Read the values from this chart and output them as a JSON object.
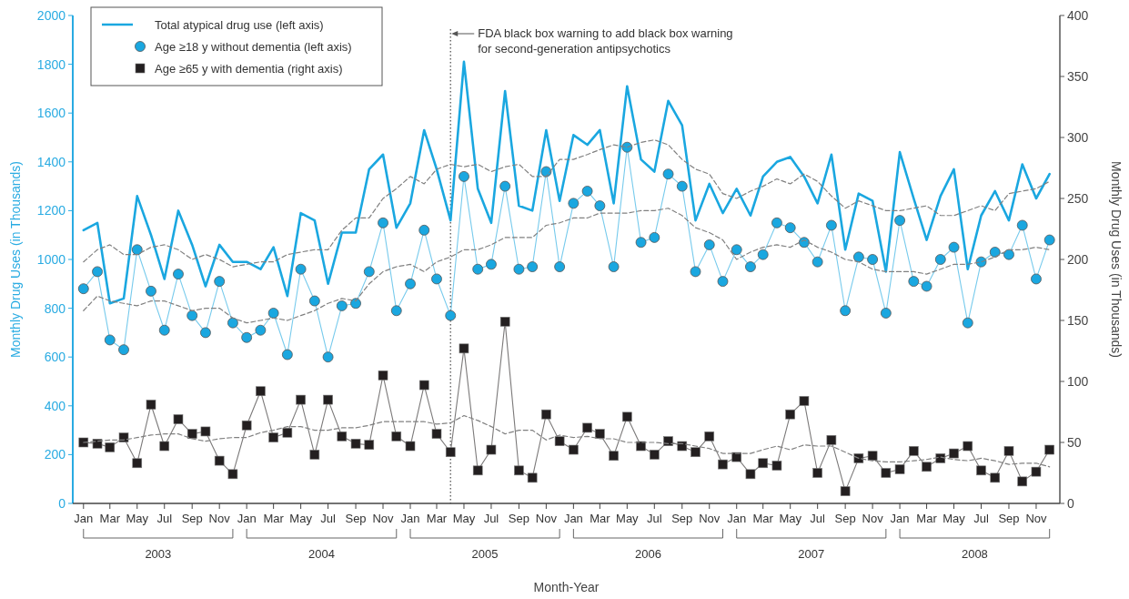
{
  "chart_data": {
    "type": "line",
    "xlabel": "Month-Year",
    "ylabel": "Monthly Drug Uses (in Thousands)",
    "y2label": "Monthly Drug Uses (in Thousands)",
    "x": [
      "2003-01",
      "2003-02",
      "2003-03",
      "2003-04",
      "2003-05",
      "2003-06",
      "2003-07",
      "2003-08",
      "2003-09",
      "2003-10",
      "2003-11",
      "2003-12",
      "2004-01",
      "2004-02",
      "2004-03",
      "2004-04",
      "2004-05",
      "2004-06",
      "2004-07",
      "2004-08",
      "2004-09",
      "2004-10",
      "2004-11",
      "2004-12",
      "2005-01",
      "2005-02",
      "2005-03",
      "2005-04",
      "2005-05",
      "2005-06",
      "2005-07",
      "2005-08",
      "2005-09",
      "2005-10",
      "2005-11",
      "2005-12",
      "2006-01",
      "2006-02",
      "2006-03",
      "2006-04",
      "2006-05",
      "2006-06",
      "2006-07",
      "2006-08",
      "2006-09",
      "2006-10",
      "2006-11",
      "2006-12",
      "2007-01",
      "2007-02",
      "2007-03",
      "2007-04",
      "2007-05",
      "2007-06",
      "2007-07",
      "2007-08",
      "2007-09",
      "2007-10",
      "2007-11",
      "2007-12",
      "2008-01",
      "2008-02",
      "2008-03",
      "2008-04",
      "2008-05",
      "2008-06",
      "2008-07",
      "2008-08",
      "2008-09",
      "2008-10",
      "2008-11",
      "2008-12"
    ],
    "series": [
      {
        "name": "Total atypical drug use (left axis)",
        "color": "#1aa7e0",
        "marker": "none",
        "line_style": "solid",
        "values": [
          1120,
          1150,
          820,
          840,
          1260,
          1100,
          920,
          1200,
          1060,
          890,
          1060,
          990,
          990,
          960,
          1050,
          850,
          1190,
          1160,
          900,
          1110,
          1110,
          1370,
          1430,
          1130,
          1230,
          1530,
          1370,
          1160,
          1810,
          1290,
          1150,
          1690,
          1220,
          1200,
          1530,
          1240,
          1510,
          1470,
          1530,
          1230,
          1710,
          1410,
          1360,
          1650,
          1550,
          1160,
          1310,
          1190,
          1290,
          1180,
          1340,
          1400,
          1420,
          1340,
          1230,
          1430,
          1040,
          1270,
          1240,
          950,
          1440,
          1250,
          1080,
          1260,
          1370,
          960,
          1180,
          1280,
          1160,
          1390,
          1250,
          1350
        ]
      },
      {
        "name": "Age ≥18 y without dementia (left axis)",
        "color": "#1aa7e0",
        "marker": "circle",
        "line_style": "solid",
        "values": [
          880,
          950,
          670,
          630,
          1040,
          870,
          710,
          940,
          770,
          700,
          910,
          740,
          680,
          710,
          780,
          610,
          960,
          830,
          600,
          810,
          820,
          950,
          1150,
          790,
          900,
          1120,
          920,
          770,
          1340,
          960,
          980,
          1300,
          960,
          970,
          1360,
          970,
          1230,
          1280,
          1220,
          970,
          1460,
          1070,
          1090,
          1350,
          1300,
          950,
          1060,
          910,
          1040,
          970,
          1020,
          1150,
          1130,
          1070,
          990,
          1140,
          790,
          1010,
          1000,
          780,
          1160,
          910,
          890,
          1000,
          1050,
          740,
          990,
          1030,
          1020,
          1140,
          920,
          1080
        ]
      },
      {
        "name": "Age ≥65 y with dementia (right axis)",
        "color": "#231f20",
        "marker": "square",
        "line_style": "solid",
        "axis": "y2",
        "values": [
          50,
          49,
          46,
          54,
          33,
          81,
          47,
          69,
          57,
          59,
          35,
          24,
          64,
          92,
          54,
          58,
          85,
          40,
          85,
          55,
          49,
          48,
          105,
          55,
          47,
          97,
          57,
          42,
          127,
          27,
          44,
          149,
          27,
          21,
          73,
          51,
          44,
          62,
          57,
          39,
          71,
          47,
          40,
          51,
          47,
          42,
          55,
          32,
          38,
          24,
          33,
          31,
          73,
          84,
          25,
          52,
          10,
          37,
          39,
          25,
          28,
          43,
          30,
          37,
          41,
          47,
          27,
          21,
          43,
          18,
          26,
          44
        ]
      },
      {
        "color": "#808080",
        "marker": "none",
        "line_style": "dashed",
        "values": [
          990,
          1040,
          1060,
          1020,
          1020,
          1050,
          1060,
          1040,
          1000,
          1020,
          1000,
          970,
          980,
          990,
          990,
          1020,
          1030,
          1040,
          1040,
          1120,
          1170,
          1170,
          1250,
          1290,
          1340,
          1310,
          1370,
          1390,
          1380,
          1390,
          1360,
          1380,
          1390,
          1340,
          1340,
          1410,
          1410,
          1430,
          1450,
          1470,
          1460,
          1480,
          1490,
          1470,
          1410,
          1370,
          1350,
          1270,
          1250,
          1280,
          1300,
          1330,
          1310,
          1350,
          1320,
          1260,
          1210,
          1240,
          1220,
          1200,
          1200,
          1210,
          1220,
          1180,
          1180,
          1200,
          1220,
          1200,
          1270,
          1280,
          1290,
          1320
        ]
      },
      {
        "color": "#808080",
        "marker": "none",
        "line_style": "dashed",
        "values": [
          790,
          850,
          830,
          820,
          810,
          830,
          830,
          810,
          790,
          800,
          800,
          760,
          740,
          750,
          760,
          750,
          770,
          790,
          820,
          840,
          830,
          900,
          950,
          970,
          980,
          950,
          990,
          1010,
          1040,
          1040,
          1060,
          1090,
          1090,
          1090,
          1140,
          1150,
          1170,
          1170,
          1190,
          1190,
          1190,
          1200,
          1200,
          1210,
          1180,
          1130,
          1110,
          1080,
          1000,
          1030,
          1050,
          1060,
          1050,
          1080,
          1050,
          1030,
          1000,
          990,
          960,
          950,
          950,
          950,
          940,
          960,
          980,
          980,
          990,
          1010,
          1040,
          1040,
          1050,
          1040
        ]
      },
      {
        "color": "#808080",
        "marker": "none",
        "line_style": "dashed",
        "axis": "y2",
        "values": [
          50,
          51,
          52,
          52,
          54,
          56,
          57,
          57,
          53,
          51,
          53,
          54,
          54,
          58,
          60,
          63,
          63,
          60,
          60,
          62,
          62,
          64,
          67,
          67,
          67,
          67,
          65,
          66,
          72,
          68,
          63,
          57,
          60,
          60,
          52,
          56,
          54,
          55,
          53,
          53,
          50,
          50,
          50,
          49,
          49,
          47,
          45,
          41,
          41,
          41,
          44,
          47,
          44,
          48,
          47,
          47,
          42,
          37,
          35,
          34,
          34,
          35,
          36,
          38,
          36,
          35,
          37,
          35,
          32,
          33,
          33,
          30
        ]
      }
    ],
    "xlim": [
      "2002-12-08",
      "2008-12-24"
    ],
    "xticks": [
      {
        "value": "2003-01",
        "label": "Jan"
      },
      {
        "value": "2003-03",
        "label": "Mar"
      },
      {
        "value": "2003-05",
        "label": "May"
      },
      {
        "value": "2003-07",
        "label": "Jul"
      },
      {
        "value": "2003-09",
        "label": "Sep"
      },
      {
        "value": "2003-11",
        "label": "Nov"
      },
      {
        "value": "2004-01",
        "label": "Jan"
      },
      {
        "value": "2004-03",
        "label": "Mar"
      },
      {
        "value": "2004-05",
        "label": "May"
      },
      {
        "value": "2004-07",
        "label": "Jul"
      },
      {
        "value": "2004-09",
        "label": "Sep"
      },
      {
        "value": "2004-11",
        "label": "Nov"
      },
      {
        "value": "2005-01",
        "label": "Jan"
      },
      {
        "value": "2005-03",
        "label": "Mar"
      },
      {
        "value": "2005-05",
        "label": "May"
      },
      {
        "value": "2005-07",
        "label": "Jul"
      },
      {
        "value": "2005-09",
        "label": "Sep"
      },
      {
        "value": "2005-11",
        "label": "Nov"
      },
      {
        "value": "2006-01",
        "label": "Jan"
      },
      {
        "value": "2006-03",
        "label": "Mar"
      },
      {
        "value": "2006-05",
        "label": "May"
      },
      {
        "value": "2006-07",
        "label": "Jul"
      },
      {
        "value": "2006-09",
        "label": "Sep"
      },
      {
        "value": "2006-11",
        "label": "Nov"
      },
      {
        "value": "2007-01",
        "label": "Jan"
      },
      {
        "value": "2007-03",
        "label": "Mar"
      },
      {
        "value": "2007-05",
        "label": "May"
      },
      {
        "value": "2007-07",
        "label": "Jul"
      },
      {
        "value": "2007-09",
        "label": "Sep"
      },
      {
        "value": "2007-11",
        "label": "Nov"
      },
      {
        "value": "2008-01",
        "label": "Jan"
      },
      {
        "value": "2008-03",
        "label": "Mar"
      },
      {
        "value": "2008-05",
        "label": "May"
      },
      {
        "value": "2008-07",
        "label": "Jul"
      },
      {
        "value": "2008-09",
        "label": "Sep"
      },
      {
        "value": "2008-11",
        "label": "Nov"
      }
    ],
    "ylim": [
      0,
      2000
    ],
    "yticks": [
      0,
      200,
      400,
      600,
      800,
      1000,
      1200,
      1400,
      1600,
      1800,
      2000
    ],
    "y2lim": [
      0,
      400
    ],
    "y2ticks": [
      0,
      50,
      100,
      150,
      200,
      250,
      300,
      350,
      400
    ],
    "ref_lines": [
      {
        "axis": "x",
        "value": "2005-04",
        "label": "FDA black box warning to add black box warning for second-generation antipsychotics",
        "color": "#555555",
        "line_style": "dotted"
      }
    ],
    "annotations": [
      "2003",
      "2004",
      "2005",
      "2006",
      "2007",
      "2008"
    ],
    "grid": false,
    "legend": "top left"
  }
}
